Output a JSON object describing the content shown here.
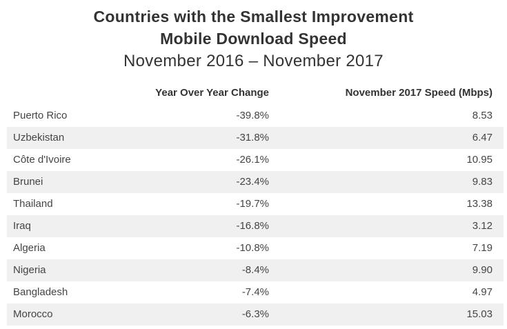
{
  "chart_data": {
    "type": "table",
    "title_lines": [
      "Countries with the Smallest Improvement",
      "Mobile Download Speed"
    ],
    "subtitle": "November 2016 – November 2017",
    "columns": [
      "",
      "Year Over Year Change",
      "November 2017 Speed (Mbps)"
    ],
    "rows": [
      {
        "country": "Puerto Rico",
        "yoy": "-39.8%",
        "speed": "8.53"
      },
      {
        "country": "Uzbekistan",
        "yoy": "-31.8%",
        "speed": "6.47"
      },
      {
        "country": "Côte d'Ivoire",
        "yoy": "-26.1%",
        "speed": "10.95"
      },
      {
        "country": "Brunei",
        "yoy": "-23.4%",
        "speed": "9.83"
      },
      {
        "country": "Thailand",
        "yoy": "-19.7%",
        "speed": "13.38"
      },
      {
        "country": "Iraq",
        "yoy": "-16.8%",
        "speed": "3.12"
      },
      {
        "country": "Algeria",
        "yoy": "-10.8%",
        "speed": "7.19"
      },
      {
        "country": "Nigeria",
        "yoy": "-8.4%",
        "speed": "9.90"
      },
      {
        "country": "Bangladesh",
        "yoy": "-7.4%",
        "speed": "4.97"
      },
      {
        "country": "Morocco",
        "yoy": "-6.3%",
        "speed": "15.03"
      }
    ]
  },
  "colors": {
    "text": "#333333",
    "row_shade": "#f0f0f0"
  }
}
